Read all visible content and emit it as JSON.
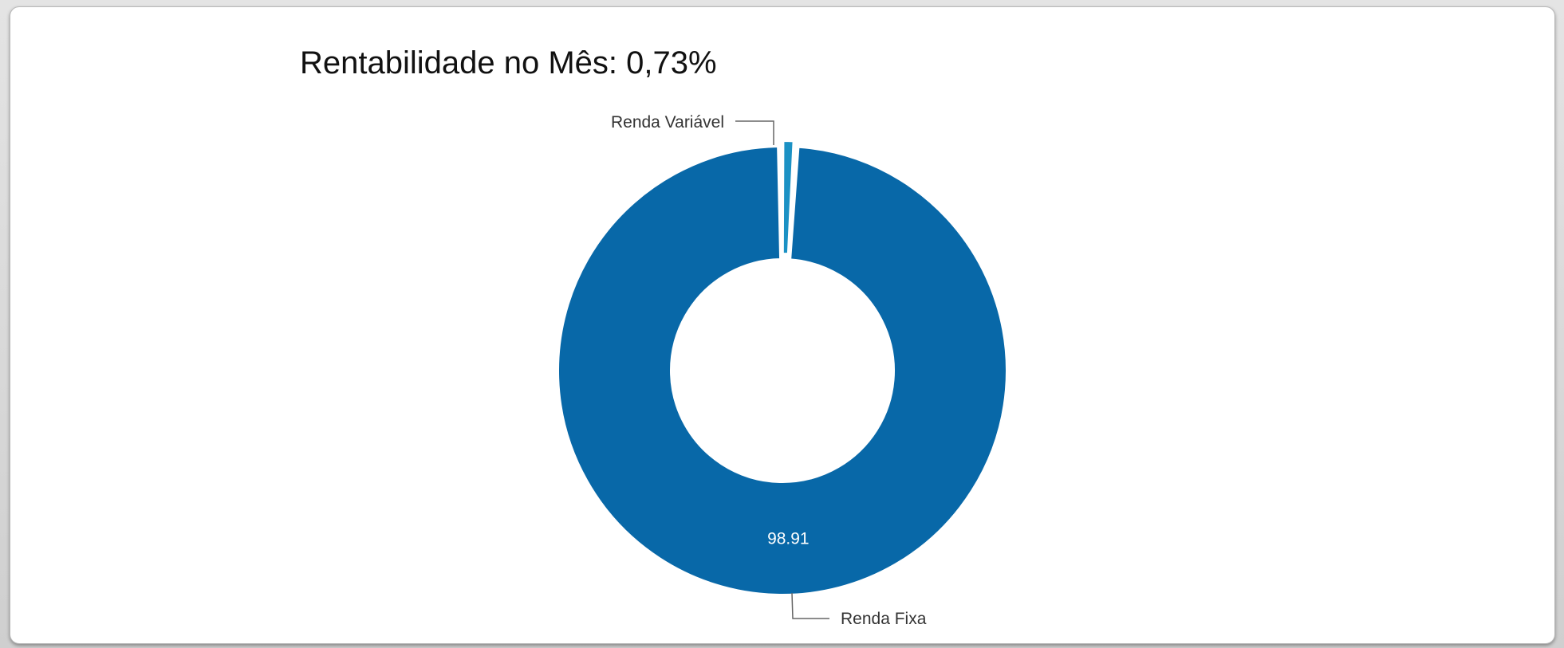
{
  "title": "Rentabilidade no Mês: 0,73%",
  "chart_data": {
    "type": "pie",
    "donut": true,
    "title": "Rentabilidade no Mês: 0,73%",
    "series": [
      {
        "name": "Renda Fixa",
        "value": 98.91,
        "data_label": "98.91",
        "color": "#0868a8"
      },
      {
        "name": "Renda Variável",
        "value": 1.09,
        "data_label": "",
        "color": "#1b91c4"
      }
    ],
    "legend": "none",
    "labels": "outside-callout"
  }
}
